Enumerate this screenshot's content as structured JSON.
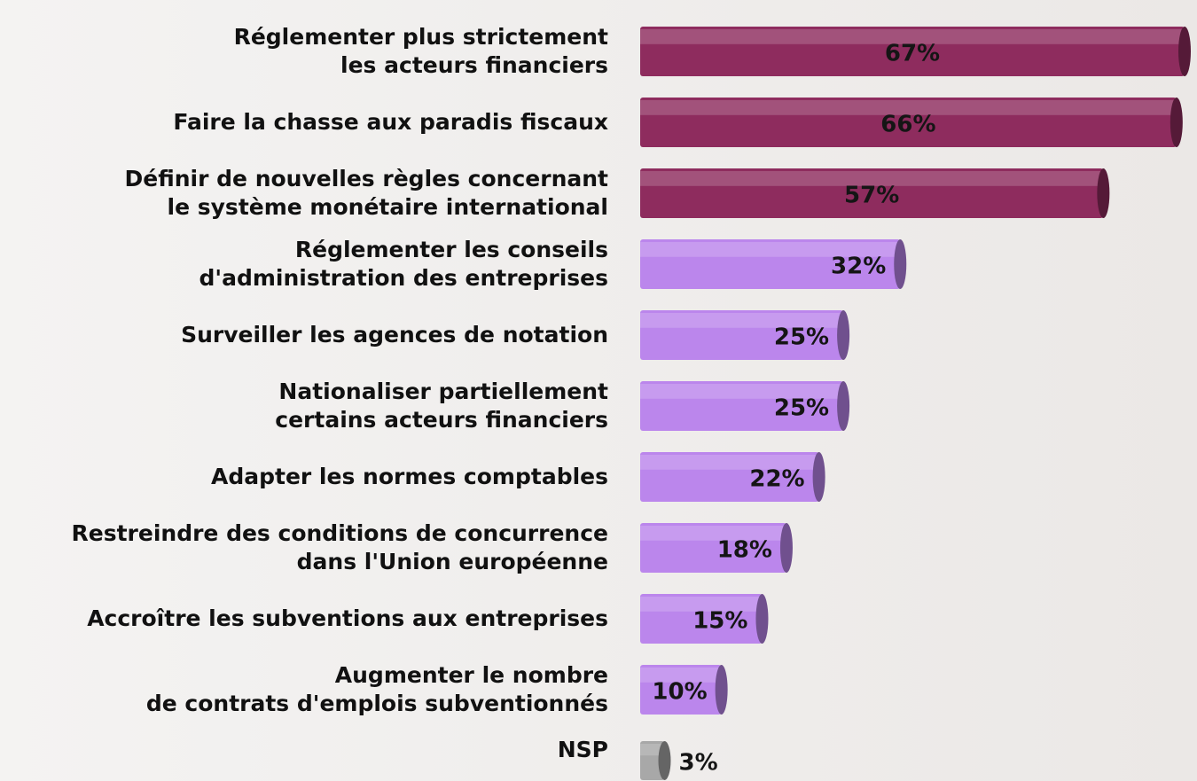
{
  "chart_data": {
    "type": "bar",
    "orientation": "horizontal",
    "categories": [
      "Réglementer plus strictement\nles acteurs financiers",
      "Faire la chasse aux paradis fiscaux",
      "Définir de nouvelles règles concernant\nle système monétaire international",
      "Réglementer les conseils\nd'administration des entreprises",
      "Surveiller les agences de notation",
      "Nationaliser partiellement\ncertains acteurs financiers",
      "Adapter les normes comptables",
      "Restreindre des conditions de concurrence\ndans l'Union européenne",
      "Accroître les subventions aux entreprises",
      "Augmenter le nombre\nde contrats d'emplois subventionnés",
      "NSP"
    ],
    "values": [
      67,
      66,
      57,
      32,
      25,
      25,
      22,
      18,
      15,
      10,
      3
    ],
    "value_labels": [
      "67%",
      "66%",
      "57%",
      "32%",
      "25%",
      "25%",
      "22%",
      "18%",
      "15%",
      "10%",
      "3%"
    ],
    "colors": [
      "#8e2c5e",
      "#8e2c5e",
      "#8e2c5e",
      "#bb86ec",
      "#bb86ec",
      "#bb86ec",
      "#bb86ec",
      "#bb86ec",
      "#bb86ec",
      "#bb86ec",
      "#a8a8a8"
    ]
  }
}
